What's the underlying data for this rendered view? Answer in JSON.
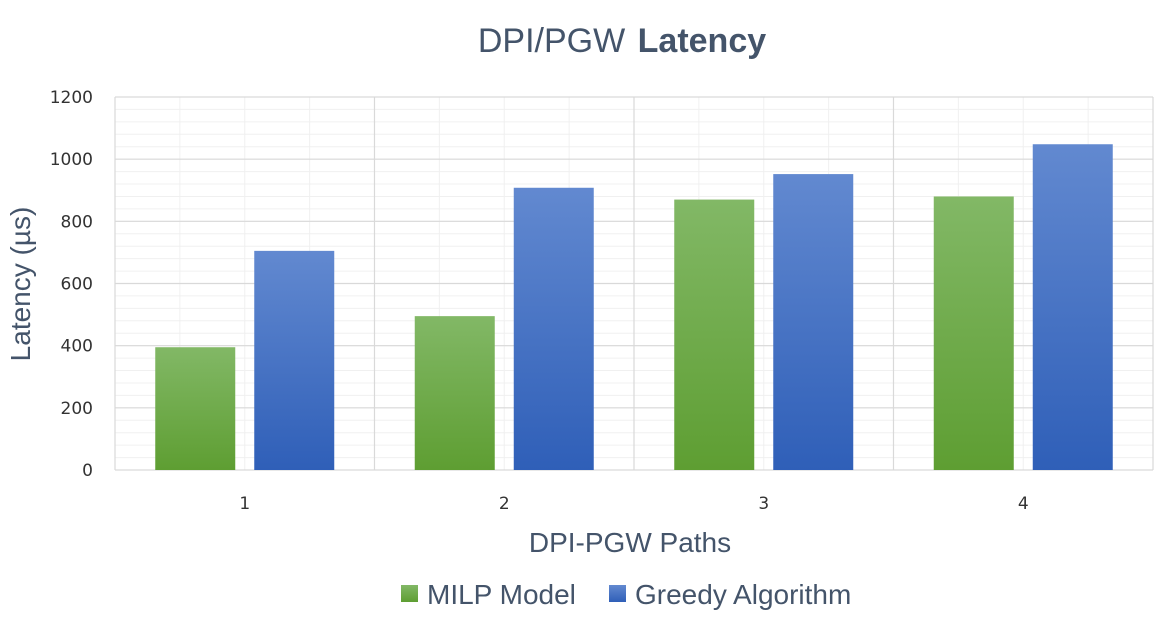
{
  "chart_data": {
    "type": "bar",
    "title": "DPI/PGW",
    "title_emphasis": "Latency",
    "xlabel": "DPI-PGW Paths",
    "ylabel": "Latency (µs)",
    "categories": [
      "1",
      "2",
      "3",
      "4"
    ],
    "series": [
      {
        "name": "MILP Model",
        "values": [
          395,
          495,
          870,
          880
        ],
        "color": "#70ad47"
      },
      {
        "name": "Greedy Algorithm",
        "values": [
          705,
          908,
          952,
          1048
        ],
        "color": "#4472c4"
      }
    ],
    "ylim": [
      0,
      1200
    ],
    "yticks": [
      0,
      200,
      400,
      600,
      800,
      1000,
      1200
    ],
    "yticks_labels": [
      "0",
      "200",
      "400",
      "600",
      "800",
      "1000",
      "1200"
    ],
    "grid": true,
    "legend_position": "bottom"
  }
}
